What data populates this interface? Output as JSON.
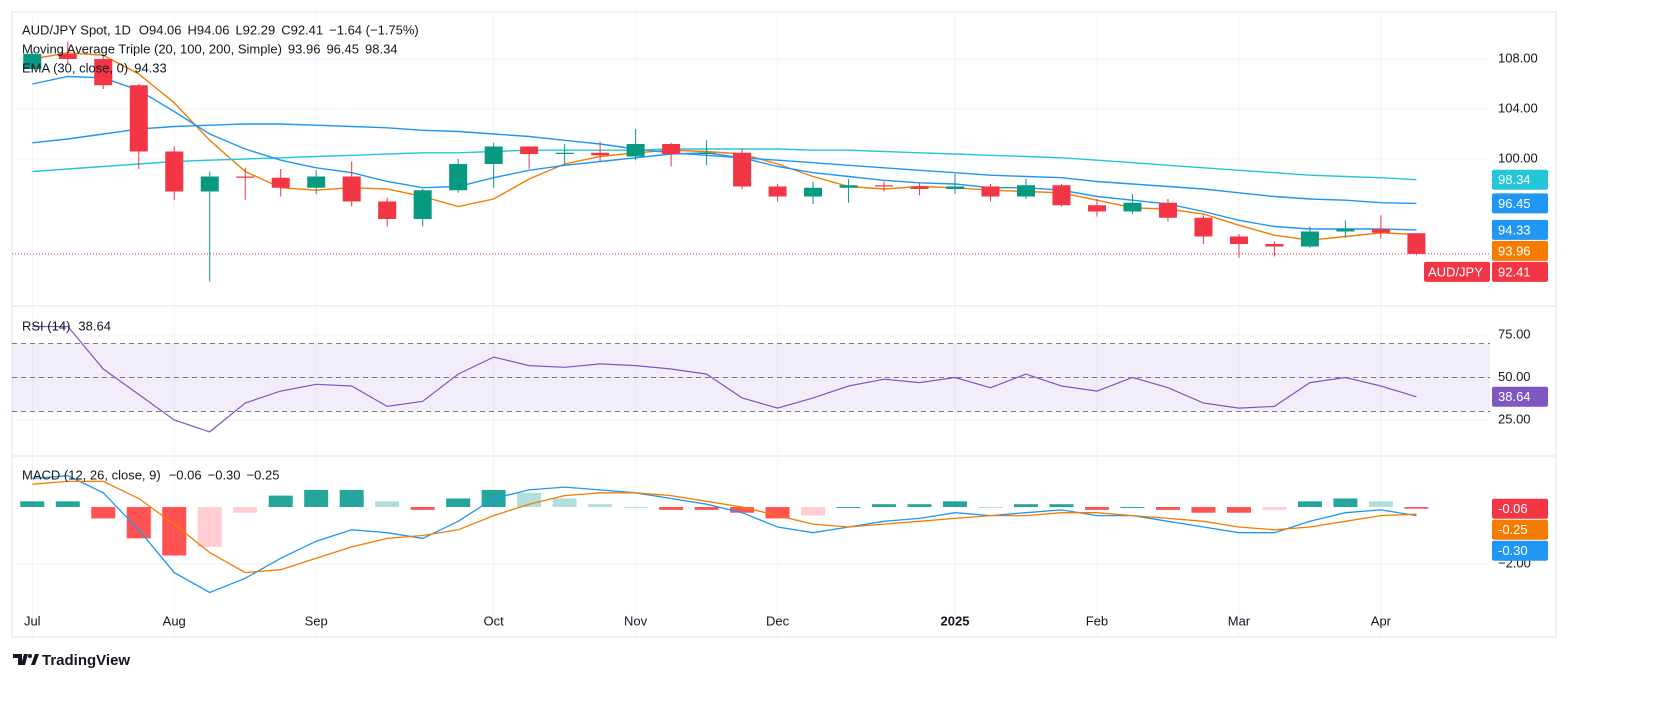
{
  "chart_data": [
    {
      "type": "candlestick",
      "legend": {
        "title": "AUD/JPY Spot, 1D",
        "fields": [
          "O94.06",
          "H94.06",
          "L92.29",
          "C92.41",
          "−1.64 (−1.75%)"
        ],
        "ma_title": "Moving Average Triple (20, 100, 200, Simple)",
        "ema_title": "EMA (30, close, 0)"
      },
      "symbol_tag": "AUD/JPY",
      "categories": [
        "Jul",
        null,
        null,
        null,
        "Aug",
        null,
        null,
        null,
        "Sep",
        null,
        null,
        null,
        null,
        "Oct",
        null,
        null,
        null,
        "Nov",
        null,
        null,
        null,
        "Dec",
        null,
        null,
        null,
        null,
        "2025",
        null,
        null,
        null,
        "Feb",
        null,
        null,
        null,
        "Mar",
        null,
        null,
        null,
        "Apr",
        null
      ],
      "open": [
        107.2,
        108.4,
        108.0,
        105.9,
        100.6,
        97.4,
        98.6,
        98.5,
        97.7,
        98.6,
        96.6,
        95.2,
        97.5,
        99.6,
        101.0,
        100.4,
        100.5,
        100.2,
        101.2,
        100.4,
        100.5,
        97.8,
        97.0,
        97.7,
        97.9,
        97.8,
        97.6,
        97.8,
        97.0,
        97.9,
        96.3,
        95.8,
        96.5,
        95.3,
        93.8,
        93.2,
        93.0,
        94.2,
        94.4,
        94.06
      ],
      "high": [
        108.6,
        109.4,
        108.3,
        106.0,
        101.0,
        99.0,
        99.3,
        99.2,
        99.1,
        99.8,
        96.9,
        97.6,
        100.0,
        101.3,
        101.0,
        101.2,
        101.4,
        102.4,
        101.3,
        101.5,
        100.8,
        98.0,
        98.2,
        98.4,
        98.2,
        98.1,
        98.8,
        98.0,
        98.4,
        98.0,
        96.8,
        97.2,
        96.8,
        95.5,
        94.0,
        93.4,
        94.6,
        95.1,
        95.5,
        94.06
      ],
      "low": [
        106.9,
        107.6,
        105.6,
        99.2,
        96.7,
        90.2,
        96.7,
        97.0,
        97.2,
        96.2,
        94.6,
        94.6,
        97.3,
        97.7,
        99.2,
        99.6,
        99.8,
        99.9,
        99.4,
        99.5,
        97.6,
        96.6,
        96.4,
        96.5,
        97.4,
        97.1,
        97.2,
        96.6,
        96.8,
        96.2,
        95.4,
        95.6,
        95.0,
        93.2,
        92.1,
        92.2,
        92.9,
        93.7,
        93.6,
        92.29
      ],
      "close": [
        108.4,
        108.0,
        105.9,
        100.6,
        97.4,
        98.6,
        98.5,
        97.7,
        98.6,
        96.6,
        95.2,
        97.5,
        99.6,
        101.0,
        100.4,
        100.5,
        100.3,
        101.2,
        100.4,
        100.5,
        97.8,
        97.0,
        97.7,
        97.9,
        97.8,
        97.6,
        97.8,
        97.0,
        97.9,
        96.3,
        95.8,
        96.5,
        95.3,
        93.8,
        93.2,
        93.0,
        94.2,
        94.4,
        94.1,
        92.41
      ],
      "up_color": "#089981",
      "down_color": "#f23645",
      "series": [
        {
          "group": "ma",
          "color": "#f57c00",
          "values": [
            108.0,
            108.5,
            108.3,
            106.8,
            104.5,
            101.5,
            99.0,
            97.7,
            97.5,
            97.7,
            97.6,
            97.0,
            96.2,
            96.8,
            98.4,
            99.6,
            100.2,
            100.5,
            100.7,
            100.6,
            100.4,
            99.6,
            98.6,
            97.8,
            97.6,
            97.8,
            97.7,
            97.5,
            97.4,
            97.3,
            96.7,
            96.1,
            96.0,
            95.6,
            94.7,
            93.9,
            93.5,
            93.8,
            94.1,
            93.96
          ]
        },
        {
          "group": "ma",
          "color": "#2196f3",
          "values": [
            101.3,
            101.6,
            102.0,
            102.4,
            102.6,
            102.7,
            102.8,
            102.8,
            102.7,
            102.6,
            102.5,
            102.3,
            102.2,
            102.0,
            101.8,
            101.5,
            101.2,
            100.8,
            100.5,
            100.3,
            100.1,
            99.9,
            99.7,
            99.5,
            99.3,
            99.1,
            98.9,
            98.7,
            98.6,
            98.5,
            98.2,
            98.0,
            97.8,
            97.6,
            97.3,
            97.0,
            96.8,
            96.7,
            96.5,
            96.45
          ]
        },
        {
          "group": "ma",
          "color": "#26c6da",
          "values": [
            99.0,
            99.2,
            99.4,
            99.6,
            99.8,
            99.9,
            100.0,
            100.1,
            100.2,
            100.3,
            100.4,
            100.5,
            100.5,
            100.6,
            100.7,
            100.7,
            100.7,
            100.7,
            100.8,
            100.8,
            100.8,
            100.8,
            100.7,
            100.7,
            100.6,
            100.5,
            100.4,
            100.3,
            100.2,
            100.1,
            99.9,
            99.7,
            99.5,
            99.3,
            99.1,
            98.9,
            98.7,
            98.6,
            98.5,
            98.34
          ]
        },
        {
          "group": "ema",
          "color": "#2196f3",
          "values": [
            106.0,
            106.6,
            106.5,
            105.5,
            103.8,
            102.0,
            100.8,
            99.9,
            99.3,
            98.9,
            98.2,
            97.7,
            97.8,
            98.5,
            99.1,
            99.5,
            99.8,
            100.1,
            100.4,
            100.5,
            100.1,
            99.4,
            98.9,
            98.6,
            98.3,
            98.1,
            98.0,
            97.7,
            97.7,
            97.5,
            97.0,
            96.7,
            96.4,
            95.8,
            95.1,
            94.6,
            94.4,
            94.4,
            94.4,
            94.33
          ]
        }
      ],
      "ylim": [
        88.32,
        111.76
      ],
      "yticks": [
        {
          "value": 100,
          "label": "100.00"
        },
        {
          "value": 104,
          "label": "104.00"
        },
        {
          "value": 108,
          "label": "108.00"
        }
      ],
      "grid": true
    },
    {
      "type": "line",
      "legend": {
        "title": "RSI (14)"
      },
      "color": "#7e57c2",
      "values": [
        80,
        80,
        55,
        40,
        25,
        18,
        35,
        42,
        46,
        45,
        33,
        36,
        52,
        62,
        57,
        56,
        58,
        57,
        55,
        52,
        38,
        32,
        38,
        45,
        49,
        47,
        50,
        44,
        52,
        45,
        42,
        50,
        44,
        35,
        32,
        33,
        47,
        50,
        45,
        38.64
      ],
      "levels": [
        30,
        50,
        70
      ],
      "band": [
        30,
        70
      ],
      "ylim": [
        4.4,
        90.9
      ],
      "yticks": [
        {
          "value": 25,
          "label": "25.00"
        },
        {
          "value": 50,
          "label": "50.00"
        },
        {
          "value": 75,
          "label": "75.00"
        }
      ]
    },
    {
      "type": "macd",
      "legend": {
        "title": "MACD (12, 26, close, 9)",
        "fields": [
          "−0.06",
          "−0.30",
          "−0.25"
        ],
        "colors": [
          "#f23645",
          "#2196f3",
          "#f57c00"
        ]
      },
      "histogram": [
        0.2,
        0.2,
        -0.4,
        -1.1,
        -1.7,
        -1.4,
        -0.2,
        0.4,
        0.6,
        0.6,
        0.2,
        -0.1,
        0.3,
        0.6,
        0.5,
        0.3,
        0.1,
        0,
        -0.1,
        -0.1,
        -0.2,
        -0.4,
        -0.3,
        0,
        0.1,
        0.1,
        0.2,
        0,
        0.1,
        0.1,
        -0.1,
        0,
        -0.1,
        -0.2,
        -0.2,
        -0.1,
        0.2,
        0.3,
        0.2,
        -0.06
      ],
      "hist_colors": {
        "pos_up": "#26a69a",
        "pos_down": "#b2dfdb",
        "neg_down": "#ff5252",
        "neg_up": "#ffcdd2"
      },
      "series": [
        {
          "color": "#2196f3",
          "values": [
            1.0,
            1.1,
            0.5,
            -0.8,
            -2.3,
            -3.0,
            -2.5,
            -1.8,
            -1.2,
            -0.8,
            -0.9,
            -1.1,
            -0.5,
            0.3,
            0.6,
            0.7,
            0.6,
            0.5,
            0.3,
            0.1,
            -0.2,
            -0.7,
            -0.9,
            -0.7,
            -0.5,
            -0.4,
            -0.2,
            -0.3,
            -0.2,
            -0.1,
            -0.3,
            -0.3,
            -0.5,
            -0.7,
            -0.9,
            -0.9,
            -0.5,
            -0.2,
            -0.1,
            -0.3
          ]
        },
        {
          "color": "#f57c00",
          "values": [
            0.8,
            0.9,
            0.9,
            0.3,
            -0.6,
            -1.6,
            -2.3,
            -2.2,
            -1.8,
            -1.4,
            -1.1,
            -1.0,
            -0.8,
            -0.3,
            0.1,
            0.4,
            0.5,
            0.5,
            0.4,
            0.2,
            0.0,
            -0.3,
            -0.6,
            -0.7,
            -0.6,
            -0.5,
            -0.4,
            -0.3,
            -0.3,
            -0.2,
            -0.2,
            -0.3,
            -0.4,
            -0.5,
            -0.7,
            -0.8,
            -0.7,
            -0.5,
            -0.3,
            -0.25
          ]
        }
      ],
      "tags": [
        {
          "value": -0.06,
          "label": "-0.06",
          "color": "#f23645"
        },
        {
          "value": -0.25,
          "label": "-0.25",
          "color": "#f57c00"
        },
        {
          "value": -0.3,
          "label": "-0.30",
          "color": "#2196f3"
        }
      ],
      "ylim": [
        -4.56,
        1.72
      ],
      "yticks": [
        {
          "value": -2,
          "label": "−2.00"
        }
      ]
    }
  ],
  "footer": {
    "brand": "TradingView"
  }
}
